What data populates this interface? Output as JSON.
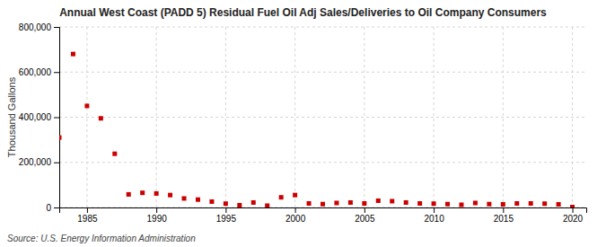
{
  "chart_data": {
    "type": "scatter",
    "title": "Annual West Coast (PADD 5) Residual Fuel Oil Adj Sales/Deliveries to Oil Company Consumers",
    "ylabel": "Thousand Gallons",
    "source": "Source: U.S. Energy Information Administration",
    "color": "#cc0000",
    "marker": "square",
    "grid": true,
    "x": [
      1983,
      1984,
      1985,
      1986,
      1987,
      1988,
      1989,
      1990,
      1991,
      1992,
      1993,
      1994,
      1995,
      1996,
      1997,
      1998,
      1999,
      2000,
      2001,
      2002,
      2003,
      2004,
      2005,
      2006,
      2007,
      2008,
      2009,
      2010,
      2011,
      2012,
      2013,
      2014,
      2015,
      2016,
      2017,
      2018,
      2019,
      2020
    ],
    "values": [
      310000,
      680000,
      450000,
      395000,
      238000,
      58000,
      65000,
      62000,
      55000,
      40000,
      35000,
      26000,
      17000,
      10000,
      22000,
      8000,
      45000,
      55000,
      18000,
      15000,
      20000,
      22000,
      18000,
      30000,
      28000,
      22000,
      18000,
      17000,
      15000,
      12000,
      20000,
      15000,
      14000,
      18000,
      18000,
      17000,
      14000,
      2000
    ],
    "xlim": [
      1983,
      2021
    ],
    "ylim": [
      0,
      800000
    ],
    "xticks": [
      1985,
      1990,
      1995,
      2000,
      2005,
      2010,
      2015,
      2020
    ],
    "yticks": [
      0,
      {
        "value": 200000,
        "label": "200,000"
      },
      {
        "value": 400000,
        "label": "400,000"
      },
      {
        "value": 600000,
        "label": "600,000"
      },
      {
        "value": 800000,
        "label": "800,000"
      }
    ]
  }
}
